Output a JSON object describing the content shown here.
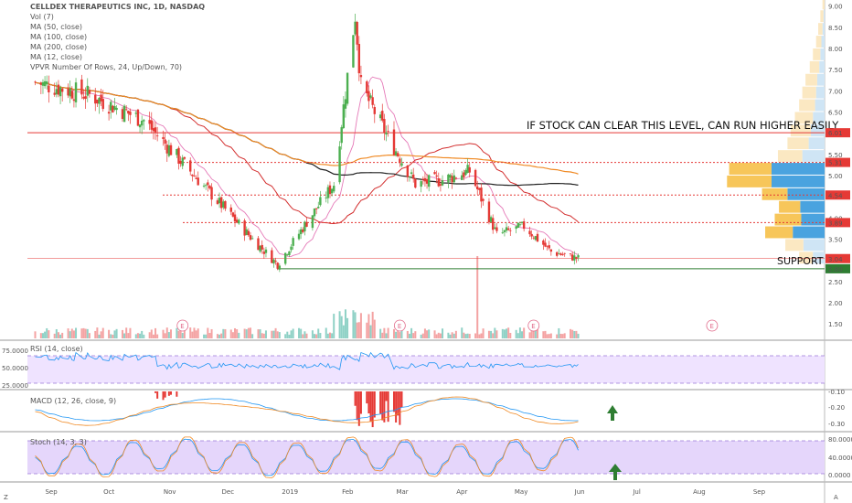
{
  "chart_data": {
    "type": "candlestick",
    "legend": [
      "CELLDEX THERAPEUTICS INC, 1D, NASDAQ",
      "Vol (7)",
      "MA (50, close)",
      "MA (100, close)",
      "MA (200, close)",
      "MA (12, close)",
      "VPVR Number Of Rows, 24, Up/Down, 70)"
    ],
    "x_ticks": [
      "Sep",
      "Oct",
      "Nov",
      "Dec",
      "2019",
      "Feb",
      "Mar",
      "Apr",
      "May",
      "Jun",
      "Jul",
      "Aug",
      "Sep"
    ],
    "y_ticks": [
      "9.00",
      "8.50",
      "8.00",
      "7.50",
      "7.00",
      "6.50",
      "6.00",
      "5.50",
      "5.00",
      "4.50",
      "4.00",
      "3.50",
      "3.00",
      "2.50",
      "2.00",
      "1.50"
    ],
    "ylim": [
      1.2,
      9.1
    ],
    "series": [
      {
        "name": "CLDX",
        "x": [
          "2018-08-24",
          "2018-09-21",
          "2018-10-19",
          "2018-11-16",
          "2018-12-14",
          "2018-12-27",
          "2019-01-11",
          "2019-01-25",
          "2019-02-05",
          "2019-02-08",
          "2019-02-22",
          "2019-03-08",
          "2019-03-22",
          "2019-04-05",
          "2019-04-19",
          "2019-05-03",
          "2019-05-17",
          "2019-05-31"
        ],
        "close": [
          7.2,
          6.9,
          6.3,
          4.9,
          3.5,
          2.9,
          3.9,
          4.8,
          8.8,
          7.1,
          5.9,
          4.8,
          4.9,
          5.1,
          3.6,
          3.8,
          3.2,
          3.04
        ]
      }
    ],
    "levels": [
      {
        "value": "6.01",
        "color": "#e53935"
      },
      {
        "value": "5.31",
        "color": "#e53935"
      },
      {
        "value": "4.54",
        "color": "#e53935"
      },
      {
        "value": "3.89",
        "color": "#e53935"
      },
      {
        "value": "3.04",
        "color": "#e53935"
      },
      {
        "value": "2.80",
        "color": "#2e7d32"
      }
    ],
    "annotations": {
      "resistance_text": "IF STOCK CAN CLEAR THIS LEVEL, CAN RUN HIGHER EASILY",
      "support_text": "SUPPORT",
      "earnings_marker": "E"
    },
    "rsi": {
      "label": "RSI (14, close)",
      "ticks": [
        "75.0000",
        "50.0000",
        "25.0000"
      ],
      "values": [
        58,
        52,
        48,
        44,
        38,
        34,
        44,
        52,
        84,
        62,
        54,
        48,
        50,
        56,
        40,
        44,
        38,
        40
      ]
    },
    "macd": {
      "label": "MACD (12, 26, close, 9)",
      "ticks": [
        "-0.10",
        "-0.20",
        "-0.30"
      ]
    },
    "stoch": {
      "label": "Stoch (14, 3, 3)",
      "ticks": [
        "80.0000",
        "40.0000",
        "0.0000"
      ]
    },
    "corner_labels": [
      "Z",
      "A"
    ],
    "colors": {
      "up": "#26a69a",
      "down": "#ef5350",
      "upBody": "#4caf50",
      "ma50": "#d32f2f",
      "ma100": "#222222",
      "ma200": "#f08a24",
      "ma12": "#e57ab8",
      "rsi": "#2196f3",
      "band": "#e9d8ff",
      "vpUp": "#4aa3df",
      "vpDown": "#f7c65a"
    }
  }
}
